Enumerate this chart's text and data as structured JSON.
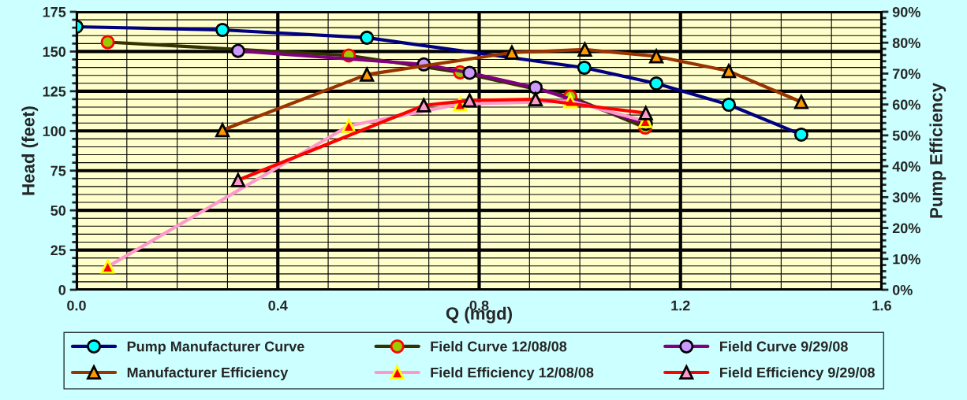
{
  "chart_data": {
    "type": "line",
    "xlabel": "Q (mgd)",
    "ylabel": "Head (feet)",
    "y2label": "Pump Efficiency",
    "xlim": [
      0,
      1.6
    ],
    "xticks": [
      {
        "value": 0,
        "label": "0.0"
      },
      0.4,
      0.8,
      1.2,
      1.6
    ],
    "ylim": [
      0,
      175
    ],
    "yticks": [
      0,
      25,
      50,
      75,
      100,
      125,
      150,
      175
    ],
    "y2lim": [
      0,
      90
    ],
    "y2ticks": [
      {
        "value": 0,
        "label": "0%"
      },
      {
        "value": 10,
        "label": "10%"
      },
      {
        "value": 20,
        "label": "20%"
      },
      {
        "value": 30,
        "label": "30%"
      },
      {
        "value": 40,
        "label": "40%"
      },
      {
        "value": 50,
        "label": "50%"
      },
      {
        "value": 60,
        "label": "60%"
      },
      {
        "value": 70,
        "label": "70%"
      },
      {
        "value": 80,
        "label": "80%"
      },
      {
        "value": 90,
        "label": "90%"
      }
    ],
    "grid": true,
    "legend": "bottom",
    "line_style": "solid",
    "series": [
      {
        "name": "Pump Manufacturer Curve",
        "color": "#000080",
        "marker": "circle",
        "x": [
          0.0,
          0.29,
          0.577,
          1.009,
          1.152,
          1.296,
          1.44
        ],
        "values": [
          165.6,
          163.6,
          158.7,
          139.8,
          129.9,
          116.5,
          97.7
        ]
      },
      {
        "name": "Field Curve 12/08/08",
        "color": "#333300",
        "marker": "circle",
        "x": [
          0.062,
          0.541,
          0.762,
          0.981,
          1.13
        ],
        "values": [
          155.9,
          147.5,
          136.9,
          121.6,
          102.1
        ]
      },
      {
        "name": "Field Curve 9/29/08",
        "color": "#800080",
        "marker": "circle",
        "x": [
          0.321,
          0.69,
          0.781,
          0.912,
          1.131
        ],
        "values": [
          150.4,
          141.9,
          136.6,
          127.3,
          104.5
        ]
      },
      {
        "name": "Manufacturer Efficiency",
        "color": "#993300",
        "marker": "triangle",
        "axis": "y2",
        "x": [
          0.29,
          0.577,
          0.865,
          1.01,
          1.152,
          1.296,
          1.44
        ],
        "values": [
          51.7,
          69.7,
          76.8,
          77.8,
          75.6,
          70.8,
          60.8
        ]
      },
      {
        "name": "Field Efficiency 12/08/08",
        "color": "#ff99cc",
        "marker": "triangle",
        "axis": "y2",
        "x": [
          0.062,
          0.541,
          0.762,
          0.981,
          1.13
        ],
        "values": [
          7.5,
          53.1,
          60.1,
          61.1,
          54.6
        ]
      },
      {
        "name": "Field Efficiency 9/29/08",
        "color": "#ff0000",
        "marker": "triangle",
        "axis": "y2",
        "x": [
          0.321,
          0.69,
          0.781,
          0.912,
          1.131
        ],
        "values": [
          35.5,
          59.7,
          61.3,
          61.7,
          57.2
        ]
      }
    ]
  }
}
